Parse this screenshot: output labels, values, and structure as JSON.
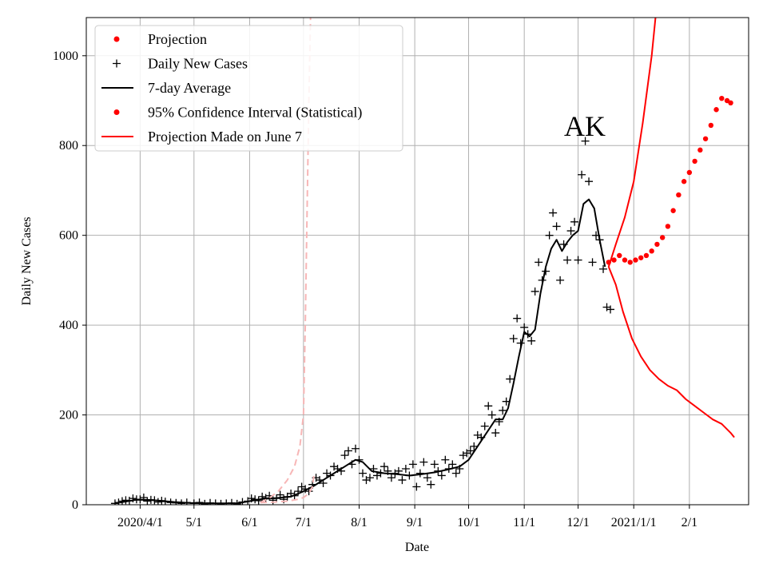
{
  "chart_data": {
    "type": "line",
    "title": "",
    "xlabel": "Date",
    "ylabel": "Daily New Cases",
    "ylim": [
      0,
      1085
    ],
    "xlim": [
      "2020-03-02",
      "2021-03-06"
    ],
    "grid": true,
    "legend_position": "top-left",
    "annotation": "AK",
    "colors": {
      "black": "#000000",
      "red": "#ff0000",
      "pink": "#f7b6b6"
    },
    "x_ticks": [
      {
        "date": "2020-04-01",
        "label": "2020/4/1"
      },
      {
        "date": "2020-05-01",
        "label": "5/1"
      },
      {
        "date": "2020-06-01",
        "label": "6/1"
      },
      {
        "date": "2020-07-01",
        "label": "7/1"
      },
      {
        "date": "2020-08-01",
        "label": "8/1"
      },
      {
        "date": "2020-09-01",
        "label": "9/1"
      },
      {
        "date": "2020-10-01",
        "label": "10/1"
      },
      {
        "date": "2020-11-01",
        "label": "11/1"
      },
      {
        "date": "2020-12-01",
        "label": "12/1"
      },
      {
        "date": "2021-01-01",
        "label": "2021/1/1"
      },
      {
        "date": "2021-02-01",
        "label": "2/1"
      }
    ],
    "y_ticks": [
      0,
      200,
      400,
      600,
      800,
      1000
    ],
    "legend": [
      {
        "label": "Projection",
        "marker": "dot",
        "color": "#ff0000"
      },
      {
        "label": "Daily New Cases",
        "marker": "plus",
        "color": "#000000"
      },
      {
        "label": "7-day Average",
        "marker": "line",
        "color": "#000000"
      },
      {
        "label": "95% Confidence Interval (Statistical)",
        "marker": "dot",
        "color": "#ff0000"
      },
      {
        "label": "Projection Made on June 7",
        "marker": "line",
        "color": "#ff0000"
      }
    ],
    "series": [
      {
        "name": "Daily New Cases",
        "style": "plus",
        "points": [
          [
            "2020-03-18",
            3
          ],
          [
            "2020-03-20",
            5
          ],
          [
            "2020-03-22",
            8
          ],
          [
            "2020-03-24",
            10
          ],
          [
            "2020-03-26",
            9
          ],
          [
            "2020-03-28",
            14
          ],
          [
            "2020-03-30",
            12
          ],
          [
            "2020-04-01",
            12
          ],
          [
            "2020-04-03",
            16
          ],
          [
            "2020-04-05",
            8
          ],
          [
            "2020-04-07",
            11
          ],
          [
            "2020-04-09",
            10
          ],
          [
            "2020-04-11",
            6
          ],
          [
            "2020-04-13",
            9
          ],
          [
            "2020-04-15",
            7
          ],
          [
            "2020-04-18",
            5
          ],
          [
            "2020-04-21",
            4
          ],
          [
            "2020-04-24",
            3
          ],
          [
            "2020-04-27",
            5
          ],
          [
            "2020-05-01",
            3
          ],
          [
            "2020-05-04",
            5
          ],
          [
            "2020-05-07",
            2
          ],
          [
            "2020-05-10",
            4
          ],
          [
            "2020-05-13",
            3
          ],
          [
            "2020-05-16",
            2
          ],
          [
            "2020-05-19",
            3
          ],
          [
            "2020-05-22",
            4
          ],
          [
            "2020-05-25",
            2
          ],
          [
            "2020-05-28",
            6
          ],
          [
            "2020-05-31",
            8
          ],
          [
            "2020-06-02",
            14
          ],
          [
            "2020-06-04",
            12
          ],
          [
            "2020-06-06",
            9
          ],
          [
            "2020-06-08",
            18
          ],
          [
            "2020-06-10",
            15
          ],
          [
            "2020-06-12",
            20
          ],
          [
            "2020-06-14",
            10
          ],
          [
            "2020-06-16",
            14
          ],
          [
            "2020-06-18",
            22
          ],
          [
            "2020-06-20",
            12
          ],
          [
            "2020-06-22",
            18
          ],
          [
            "2020-06-24",
            25
          ],
          [
            "2020-06-26",
            20
          ],
          [
            "2020-06-28",
            30
          ],
          [
            "2020-06-30",
            40
          ],
          [
            "2020-07-02",
            35
          ],
          [
            "2020-07-04",
            30
          ],
          [
            "2020-07-06",
            45
          ],
          [
            "2020-07-08",
            60
          ],
          [
            "2020-07-10",
            55
          ],
          [
            "2020-07-12",
            48
          ],
          [
            "2020-07-14",
            70
          ],
          [
            "2020-07-16",
            65
          ],
          [
            "2020-07-18",
            85
          ],
          [
            "2020-07-20",
            80
          ],
          [
            "2020-07-22",
            75
          ],
          [
            "2020-07-24",
            110
          ],
          [
            "2020-07-26",
            120
          ],
          [
            "2020-07-28",
            90
          ],
          [
            "2020-07-30",
            125
          ],
          [
            "2020-08-01",
            100
          ],
          [
            "2020-08-03",
            70
          ],
          [
            "2020-08-05",
            55
          ],
          [
            "2020-08-07",
            60
          ],
          [
            "2020-08-09",
            80
          ],
          [
            "2020-08-11",
            65
          ],
          [
            "2020-08-13",
            70
          ],
          [
            "2020-08-15",
            85
          ],
          [
            "2020-08-17",
            75
          ],
          [
            "2020-08-19",
            60
          ],
          [
            "2020-08-21",
            70
          ],
          [
            "2020-08-23",
            75
          ],
          [
            "2020-08-25",
            55
          ],
          [
            "2020-08-27",
            80
          ],
          [
            "2020-08-29",
            65
          ],
          [
            "2020-08-31",
            90
          ],
          [
            "2020-09-02",
            40
          ],
          [
            "2020-09-04",
            70
          ],
          [
            "2020-09-06",
            95
          ],
          [
            "2020-09-08",
            60
          ],
          [
            "2020-09-10",
            45
          ],
          [
            "2020-09-12",
            90
          ],
          [
            "2020-09-14",
            75
          ],
          [
            "2020-09-16",
            65
          ],
          [
            "2020-09-18",
            100
          ],
          [
            "2020-09-20",
            80
          ],
          [
            "2020-09-22",
            90
          ],
          [
            "2020-09-24",
            70
          ],
          [
            "2020-09-26",
            80
          ],
          [
            "2020-09-28",
            110
          ],
          [
            "2020-09-30",
            115
          ],
          [
            "2020-10-02",
            120
          ],
          [
            "2020-10-04",
            130
          ],
          [
            "2020-10-06",
            155
          ],
          [
            "2020-10-08",
            150
          ],
          [
            "2020-10-10",
            175
          ],
          [
            "2020-10-12",
            220
          ],
          [
            "2020-10-14",
            200
          ],
          [
            "2020-10-16",
            160
          ],
          [
            "2020-10-18",
            185
          ],
          [
            "2020-10-20",
            210
          ],
          [
            "2020-10-22",
            230
          ],
          [
            "2020-10-24",
            280
          ],
          [
            "2020-10-26",
            370
          ],
          [
            "2020-10-28",
            415
          ],
          [
            "2020-10-30",
            360
          ],
          [
            "2020-11-01",
            395
          ],
          [
            "2020-11-03",
            380
          ],
          [
            "2020-11-05",
            365
          ],
          [
            "2020-11-07",
            475
          ],
          [
            "2020-11-09",
            540
          ],
          [
            "2020-11-11",
            500
          ],
          [
            "2020-11-13",
            520
          ],
          [
            "2020-11-15",
            600
          ],
          [
            "2020-11-17",
            650
          ],
          [
            "2020-11-19",
            620
          ],
          [
            "2020-11-21",
            500
          ],
          [
            "2020-11-23",
            580
          ],
          [
            "2020-11-25",
            545
          ],
          [
            "2020-11-27",
            610
          ],
          [
            "2020-11-29",
            630
          ],
          [
            "2020-12-01",
            545
          ],
          [
            "2020-12-03",
            735
          ],
          [
            "2020-12-05",
            810
          ],
          [
            "2020-12-07",
            720
          ],
          [
            "2020-12-09",
            540
          ],
          [
            "2020-12-11",
            600
          ],
          [
            "2020-12-13",
            590
          ],
          [
            "2020-12-15",
            525
          ],
          [
            "2020-12-17",
            440
          ],
          [
            "2020-12-19",
            435
          ]
        ]
      },
      {
        "name": "7-day Average",
        "style": "line",
        "points": [
          [
            "2020-03-18",
            3
          ],
          [
            "2020-03-24",
            7
          ],
          [
            "2020-03-30",
            11
          ],
          [
            "2020-04-05",
            11
          ],
          [
            "2020-04-12",
            9
          ],
          [
            "2020-04-20",
            6
          ],
          [
            "2020-04-28",
            4
          ],
          [
            "2020-05-10",
            3
          ],
          [
            "2020-05-25",
            3
          ],
          [
            "2020-06-01",
            8
          ],
          [
            "2020-06-08",
            13
          ],
          [
            "2020-06-16",
            15
          ],
          [
            "2020-06-24",
            18
          ],
          [
            "2020-06-30",
            28
          ],
          [
            "2020-07-06",
            40
          ],
          [
            "2020-07-12",
            55
          ],
          [
            "2020-07-18",
            70
          ],
          [
            "2020-07-24",
            85
          ],
          [
            "2020-07-30",
            100
          ],
          [
            "2020-08-03",
            95
          ],
          [
            "2020-08-08",
            75
          ],
          [
            "2020-08-15",
            70
          ],
          [
            "2020-08-22",
            68
          ],
          [
            "2020-08-29",
            65
          ],
          [
            "2020-09-05",
            68
          ],
          [
            "2020-09-12",
            72
          ],
          [
            "2020-09-19",
            78
          ],
          [
            "2020-09-26",
            85
          ],
          [
            "2020-10-01",
            100
          ],
          [
            "2020-10-06",
            130
          ],
          [
            "2020-10-11",
            160
          ],
          [
            "2020-10-16",
            190
          ],
          [
            "2020-10-20",
            190
          ],
          [
            "2020-10-23",
            215
          ],
          [
            "2020-10-26",
            270
          ],
          [
            "2020-10-29",
            330
          ],
          [
            "2020-11-01",
            385
          ],
          [
            "2020-11-04",
            375
          ],
          [
            "2020-11-07",
            390
          ],
          [
            "2020-11-10",
            470
          ],
          [
            "2020-11-13",
            530
          ],
          [
            "2020-11-16",
            570
          ],
          [
            "2020-11-19",
            590
          ],
          [
            "2020-11-22",
            565
          ],
          [
            "2020-11-25",
            585
          ],
          [
            "2020-11-28",
            600
          ],
          [
            "2020-12-01",
            610
          ],
          [
            "2020-12-04",
            670
          ],
          [
            "2020-12-07",
            680
          ],
          [
            "2020-12-10",
            660
          ],
          [
            "2020-12-13",
            590
          ],
          [
            "2020-12-16",
            530
          ]
        ]
      },
      {
        "name": "Projection",
        "style": "dots",
        "points": [
          [
            "2020-12-18",
            540
          ],
          [
            "2020-12-21",
            545
          ],
          [
            "2020-12-24",
            555
          ],
          [
            "2020-12-27",
            545
          ],
          [
            "2020-12-30",
            540
          ],
          [
            "2021-01-02",
            545
          ],
          [
            "2021-01-05",
            550
          ],
          [
            "2021-01-08",
            555
          ],
          [
            "2021-01-11",
            565
          ],
          [
            "2021-01-14",
            580
          ],
          [
            "2021-01-17",
            595
          ],
          [
            "2021-01-20",
            620
          ],
          [
            "2021-01-23",
            655
          ],
          [
            "2021-01-26",
            690
          ],
          [
            "2021-01-29",
            720
          ],
          [
            "2021-02-01",
            740
          ],
          [
            "2021-02-04",
            765
          ],
          [
            "2021-02-07",
            790
          ],
          [
            "2021-02-10",
            815
          ],
          [
            "2021-02-13",
            845
          ],
          [
            "2021-02-16",
            880
          ],
          [
            "2021-02-19",
            905
          ],
          [
            "2021-02-22",
            900
          ],
          [
            "2021-02-24",
            895
          ]
        ]
      },
      {
        "name": "95% Confidence Interval (Statistical)",
        "style": "line-red",
        "points": [
          [
            "2020-12-18",
            530
          ],
          [
            "2020-12-22",
            580
          ],
          [
            "2020-12-27",
            640
          ],
          [
            "2021-01-01",
            720
          ],
          [
            "2021-01-06",
            850
          ],
          [
            "2021-01-11",
            1000
          ],
          [
            "2021-01-16",
            1200
          ]
        ]
      },
      {
        "name": "95% Confidence Interval (Statistical)",
        "style": "line-red",
        "points": [
          [
            "2020-12-18",
            530
          ],
          [
            "2020-12-22",
            490
          ],
          [
            "2020-12-26",
            430
          ],
          [
            "2020-12-31",
            370
          ],
          [
            "2021-01-05",
            330
          ],
          [
            "2021-01-10",
            300
          ],
          [
            "2021-01-15",
            280
          ],
          [
            "2021-01-20",
            265
          ],
          [
            "2021-01-25",
            255
          ],
          [
            "2021-01-30",
            235
          ],
          [
            "2021-02-04",
            220
          ],
          [
            "2021-02-09",
            205
          ],
          [
            "2021-02-14",
            190
          ],
          [
            "2021-02-19",
            180
          ],
          [
            "2021-02-24",
            160
          ],
          [
            "2021-02-26",
            150
          ]
        ]
      },
      {
        "name": "Projection Made on June 7",
        "style": "dashed-pink",
        "points": [
          [
            "2020-06-07",
            5
          ],
          [
            "2020-06-12",
            15
          ],
          [
            "2020-06-17",
            30
          ],
          [
            "2020-06-22",
            55
          ],
          [
            "2020-06-26",
            85
          ],
          [
            "2020-06-29",
            130
          ],
          [
            "2020-07-01",
            200
          ],
          [
            "2020-07-02",
            400
          ],
          [
            "2020-07-03",
            650
          ],
          [
            "2020-07-04",
            900
          ],
          [
            "2020-07-05",
            1100
          ]
        ]
      },
      {
        "name": "Projection Made on June 7",
        "style": "dashed-pink",
        "points": [
          [
            "2020-06-07",
            5
          ],
          [
            "2020-06-15",
            6
          ],
          [
            "2020-06-22",
            8
          ],
          [
            "2020-06-28",
            12
          ],
          [
            "2020-07-01",
            16
          ],
          [
            "2020-07-04",
            25
          ],
          [
            "2020-07-06",
            40
          ],
          [
            "2020-07-07",
            70
          ]
        ]
      }
    ]
  }
}
